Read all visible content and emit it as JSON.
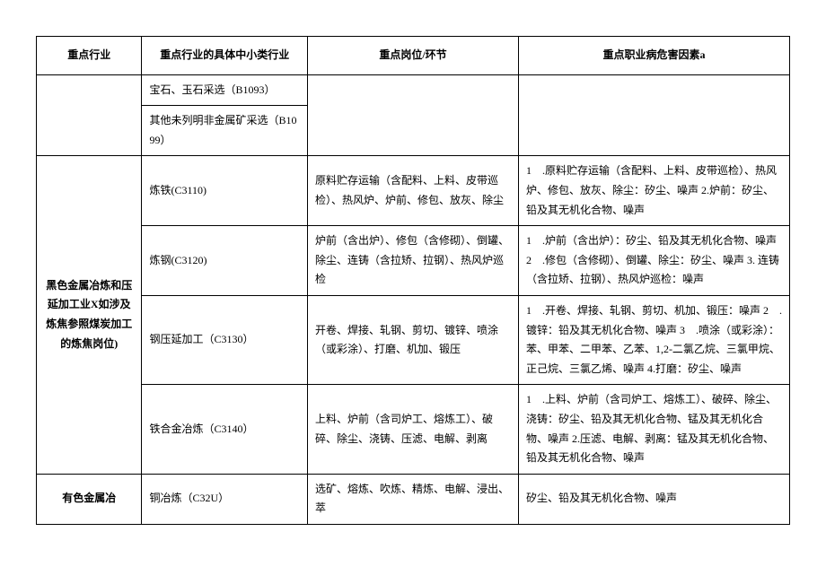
{
  "headers": {
    "industry": "重点行业",
    "subindustry": "重点行业的具体中小类行业",
    "post": "重点岗位/环节",
    "hazard": "重点职业病危害因素a"
  },
  "rows": {
    "r1_sub": "宝石、玉石采选（B1093）",
    "r2_sub": "其他未列明非金属矿采选（B1099）",
    "black_metal_industry": "黑色金属冶炼和压延加工业X如涉及炼焦参照煤炭加工的炼焦岗位)",
    "r3_sub": "炼铁(C3110)",
    "r3_post": "原料贮存运输（含配料、上料、皮带巡检）、热风炉、炉前、修包、放灰、除尘",
    "r3_haz": "1　.原料贮存运输（含配料、上料、皮带巡检）、热风炉、修包、放灰、除尘：矽尘、噪声 2.炉前：矽尘、铅及其无机化合物、噪声",
    "r4_sub": "炼钢(C3120)",
    "r4_post": "炉前（含出炉）、修包（含修砌）、倒罐、除尘、连铸（含拉矫、拉钢）、热风炉巡检",
    "r4_haz": "1　.炉前（含出炉）：矽尘、铅及其无机化合物、噪声 2　.修包（含修砌）、倒罐、除尘：矽尘、噪声 3. 连铸（含拉矫、拉钢）、热风炉巡检：噪声",
    "r5_sub": "钢压延加工（C3130）",
    "r5_post": "开卷、焊接、轧钢、剪切、镀锌、喷涂（或彩涂）、打磨、机加、锻压",
    "r5_haz": "1　.开卷、焊接、轧钢、剪切、机加、锻压：噪声 2　.镀锌：铅及其无机化合物、噪声 3　.喷涂（或彩涂）：苯、甲苯、二甲苯、乙苯、1,2-二氯乙烷、三氯甲烷、正己烷、三氯乙烯、噪声 4.打磨：矽尘、噪声",
    "r6_sub": "铁合金冶炼（C3140）",
    "r6_post": "上料、炉前（含司炉工、熔炼工）、破碎、除尘、浇铸、压滤、电解、剥离",
    "r6_haz": "1　.上料、炉前（含司炉工、熔炼工）、破碎、除尘、浇铸：矽尘、铅及其无机化合物、锰及其无机化合物、噪声 2.压滤、电解、剥离：锰及其无机化合物、铅及其无机化合物、噪声",
    "nonferrous_industry": "有色金属冶",
    "r7_sub": "铜冶炼（C32U）",
    "r7_post": "选矿、熔炼、吹炼、精炼、电解、浸出、萃",
    "r7_haz": "矽尘、铅及其无机化合物、噪声"
  }
}
